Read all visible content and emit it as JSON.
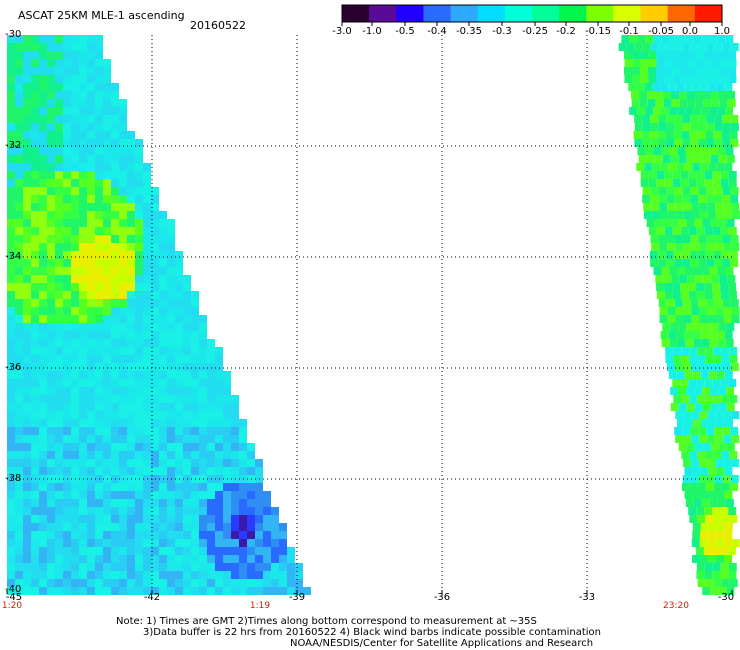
{
  "title": "ASCAT 25KM MLE-1 ascending",
  "date": "20160522",
  "colorbar": {
    "ticks": [
      "-3.0",
      "-1.0",
      "-0.5",
      "-0.4",
      "-0.35",
      "-0.3",
      "-0.25",
      "-0.2",
      "-0.15",
      "-0.1",
      "-0.05",
      "0.0",
      "1.0"
    ],
    "colors": [
      "#2a0030",
      "#5a0a98",
      "#2200ff",
      "#2a6bff",
      "#2fa8ff",
      "#00ddff",
      "#00ffd8",
      "#00ff9a",
      "#00f54a",
      "#7cff00",
      "#d8ff00",
      "#ffcc00",
      "#ff6600",
      "#ff1a00"
    ]
  },
  "y_axis": {
    "labels": [
      "-30",
      "-32",
      "-34",
      "-36",
      "-38",
      "-40"
    ],
    "values": [
      -30,
      -32,
      -34,
      -36,
      -38,
      -40
    ]
  },
  "x_axis": {
    "labels": [
      "-45",
      "-42",
      "-39",
      "-36",
      "-33",
      "-30"
    ],
    "values": [
      -45,
      -42,
      -39,
      -36,
      -33,
      -30
    ]
  },
  "times": [
    "1:20",
    "1:19",
    "23:20"
  ],
  "notes": [
    "Note: 1) Times are GMT 2)Times along bottom correspond to measurement at ~35S",
    "3)Data buffer is 22 hrs from 20160522 4) Black wind barbs indicate possible contamination",
    "NOAA/NESDIS/Center for Satellite Applications and Research"
  ],
  "colors": {
    "left_swath_base": "#19f0e6",
    "right_swath_base": "#33ff33",
    "time_label": "#cc2200",
    "grid": "#000000"
  }
}
